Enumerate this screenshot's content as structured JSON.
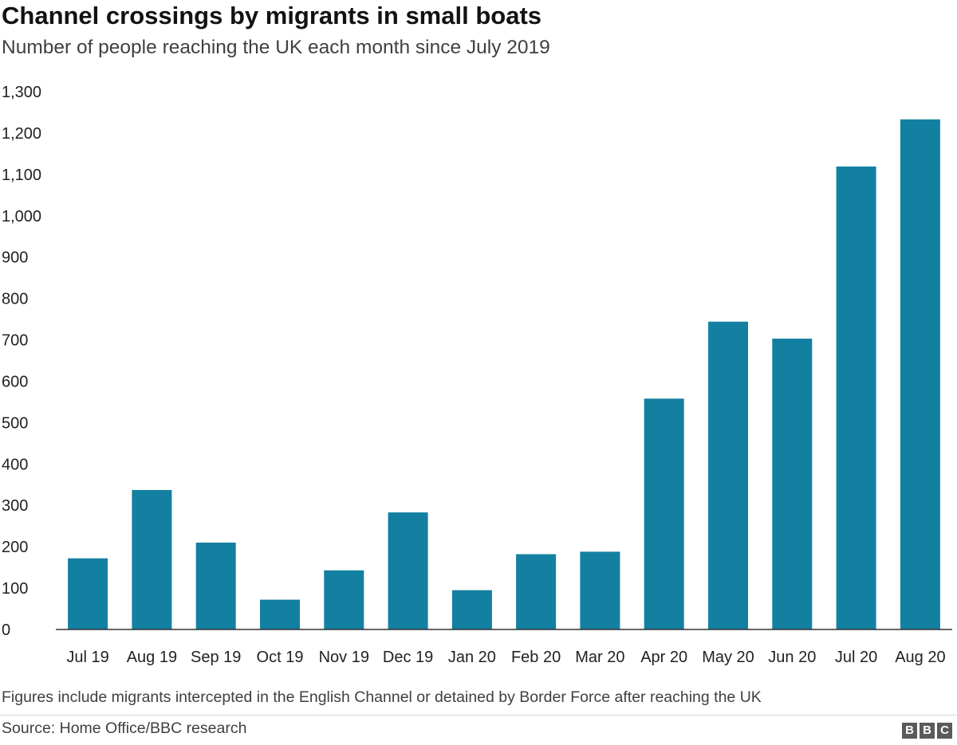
{
  "chart_data": {
    "type": "bar",
    "title": "Channel crossings by migrants in small boats",
    "subtitle": "Number of people reaching the UK each month since July 2019",
    "categories": [
      "Jul 19",
      "Aug 19",
      "Sep 19",
      "Oct 19",
      "Nov 19",
      "Dec 19",
      "Jan 20",
      "Feb 20",
      "Mar 20",
      "Apr 20",
      "May 20",
      "Jun 20",
      "Jul 20",
      "Aug 20"
    ],
    "values": [
      172,
      337,
      210,
      72,
      143,
      283,
      95,
      182,
      188,
      558,
      744,
      703,
      1119,
      1233
    ],
    "ylim": [
      0,
      1300
    ],
    "yticks": [
      0,
      100,
      200,
      300,
      400,
      500,
      600,
      700,
      800,
      900,
      1000,
      1100,
      1200,
      1300
    ],
    "ytick_labels": [
      "0",
      "100",
      "200",
      "300",
      "400",
      "500",
      "600",
      "700",
      "800",
      "900",
      "1,000",
      "1,100",
      "1,200",
      "1,300"
    ],
    "grid": false,
    "bar_color": "#1380a1",
    "axis_color": "#333333"
  },
  "footnote": "Figures include migrants intercepted in the English Channel or detained by Border Force after reaching the UK",
  "source": "Source: Home Office/BBC research",
  "logo": [
    "B",
    "B",
    "C"
  ]
}
